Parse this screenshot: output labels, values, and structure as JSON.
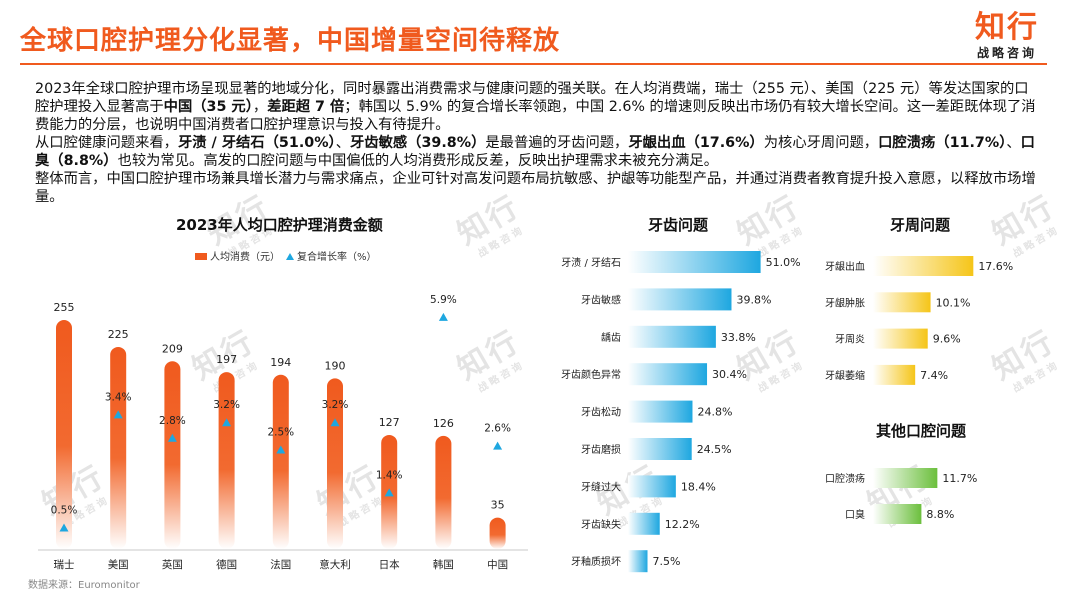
{
  "header": {
    "title": "全球口腔护理分化显著，中国增量空间待释放",
    "logo_main": "知行",
    "logo_sub": "战略咨询"
  },
  "summary": {
    "p1_a": "2023年全球口腔护理市场呈现显著的地域分化，同时暴露出消费需求与健康问题的强关联。在人均消费端，瑞士（255 元）、美国（225 元）等发达国家的口腔护理投入显著高于",
    "p1_b": "中国（35 元）",
    "p1_c": "，",
    "p1_d": "差距超 7 倍",
    "p1_e": "；韩国以 5.9% 的复合增长率领跑，中国 2.6% 的增速则反映出市场仍有较大增长空间。这一差距既体现了消费能力的分层，也说明中国消费者口腔护理意识与投入有待提升。",
    "p2_a": "从口腔健康问题来看，",
    "p2_b": "牙渍 / 牙结石（51.0%）",
    "p2_c": "、",
    "p2_d": "牙齿敏感（39.8%）",
    "p2_e": "是最普遍的牙齿问题，",
    "p2_f": "牙龈出血（17.6%）",
    "p2_g": "为核心牙周问题，",
    "p2_h": "口腔溃疡（11.7%）",
    "p2_i": "、",
    "p2_j": "口臭（8.8%）",
    "p2_k": "也较为常见。高发的口腔问题与中国偏低的人均消费形成反差，反映出护理需求未被充分满足。",
    "p3": "整体而言，中国口腔护理市场兼具增长潜力与需求痛点，企业可针对高发问题布局抗敏感、护龈等功能型产品，并通过消费者教育提升投入意愿，以释放市场增量。"
  },
  "legend": {
    "bar": "人均消费（元）",
    "tri": "复合增长率（%）"
  },
  "source": "数据来源：Euromonitor",
  "watermark": {
    "main": "知行",
    "sub": "战略咨询"
  },
  "colors": {
    "accent": "#f05a1e",
    "blue": "#1ea7e0",
    "yellow": "#f5c518",
    "green": "#6bbf3c"
  },
  "chart_data": [
    {
      "type": "bar",
      "title": "2023年人均口腔护理消费金额",
      "categories": [
        "瑞士",
        "美国",
        "英国",
        "德国",
        "法国",
        "意大利",
        "日本",
        "韩国",
        "中国"
      ],
      "series": [
        {
          "name": "人均消费（元）",
          "values": [
            255,
            225,
            209,
            197,
            194,
            190,
            127,
            126,
            35
          ]
        },
        {
          "name": "复合增长率（%）",
          "values": [
            0.5,
            3.4,
            2.8,
            3.2,
            2.5,
            3.2,
            1.4,
            5.9,
            2.6
          ],
          "labels": [
            "0.5%",
            "3.4%",
            "2.8%",
            "3.2%",
            "2.5%",
            "3.2%",
            "1.4%",
            "5.9%",
            "2.6%"
          ]
        }
      ]
    },
    {
      "type": "bar",
      "title": "牙齿问题",
      "categories": [
        "牙渍 / 牙结石",
        "牙齿敏感",
        "龋齿",
        "牙齿颜色异常",
        "牙齿松动",
        "牙齿磨损",
        "牙缝过大",
        "牙齿缺失",
        "牙釉质损坏"
      ],
      "values": [
        51.0,
        39.8,
        33.8,
        30.4,
        24.8,
        24.5,
        18.4,
        12.2,
        7.5
      ],
      "labels": [
        "51.0%",
        "39.8%",
        "33.8%",
        "30.4%",
        "24.8%",
        "24.5%",
        "18.4%",
        "12.2%",
        "7.5%"
      ]
    },
    {
      "type": "bar",
      "title": "牙周问题",
      "categories": [
        "牙龈出血",
        "牙龈肿胀",
        "牙周炎",
        "牙龈萎缩"
      ],
      "values": [
        17.6,
        10.1,
        9.6,
        7.4
      ],
      "labels": [
        "17.6%",
        "10.1%",
        "9.6%",
        "7.4%"
      ]
    },
    {
      "type": "bar",
      "title": "其他口腔问题",
      "categories": [
        "口腔溃疡",
        "口臭"
      ],
      "values": [
        11.7,
        8.8
      ],
      "labels": [
        "11.7%",
        "8.8%"
      ]
    }
  ]
}
